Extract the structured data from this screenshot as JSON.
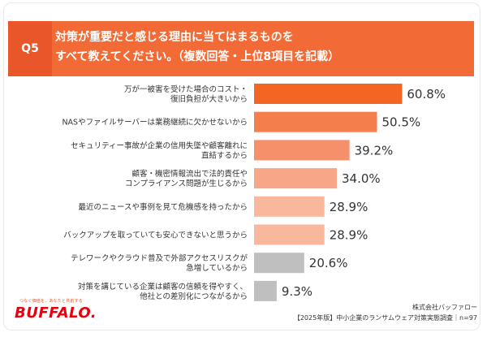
{
  "header": {
    "badge": "Q5",
    "title": "対策が重要だと感じる理由に当てはまるものを\nすべて教えてください。（複数回答・上位8項目を記載）"
  },
  "chart_data": {
    "type": "bar",
    "orientation": "horizontal",
    "categories": [
      "万が一被害を受けた場合のコスト・\n復旧負担が大きいから",
      "NASやファイルサーバーは業務継続に欠かせないから",
      "セキュリティー事故が企業の信用失墜や顧客離れに\n直結するから",
      "顧客・機密情報流出で法的責任や\nコンプライアンス問題が生じるから",
      "最近のニュースや事例を見て危機感を持ったから",
      "バックアップを取っていても安心できないと思うから",
      "テレワークやクラウド普及で外部アクセスリスクが\n急増しているから",
      "対策を講じている企業は顧客の信頼を得やすく、\n他社との差別化につながるから"
    ],
    "values": [
      60.8,
      50.5,
      39.2,
      34.0,
      28.9,
      28.9,
      20.6,
      9.3
    ],
    "value_labels": [
      "60.8%",
      "50.5%",
      "39.2%",
      "34.0%",
      "28.9%",
      "28.9%",
      "20.6%",
      "9.3%"
    ],
    "colors": [
      "#f26522",
      "#f47e4c",
      "#f5906a",
      "#f7a687",
      "#f9b79c",
      "#f9b79c",
      "#bfbfbf",
      "#bfbfbf"
    ],
    "xlim": [
      0,
      100
    ],
    "grid": false,
    "legend": "none"
  },
  "brand": {
    "tagline": "つなぐ価値を、あなたと共創する",
    "logo": "BUFFALO."
  },
  "source": {
    "company": "株式会社バッファロー",
    "survey": "【2025年版】中小企業のランサムウェア対策実態調査｜n=97"
  }
}
